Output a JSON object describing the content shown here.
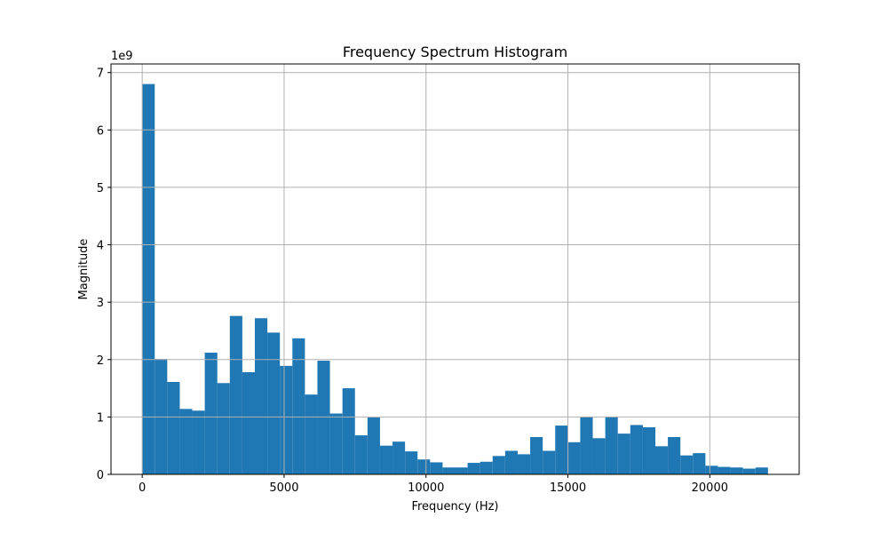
{
  "chart_data": {
    "type": "bar",
    "title": "Frequency Spectrum Histogram",
    "xlabel": "Frequency (Hz)",
    "ylabel": "Magnitude",
    "y_multiplier_label": "1e9",
    "xlim": [
      -1100,
      23150
    ],
    "ylim": [
      0,
      7.15
    ],
    "x_ticks": [
      0,
      5000,
      10000,
      15000,
      20000
    ],
    "y_ticks": [
      0,
      1,
      2,
      3,
      4,
      5,
      6,
      7
    ],
    "grid": true,
    "color": "#1f77b4",
    "bin_start": 0,
    "bin_width": 441,
    "values": [
      6.8,
      2.01,
      1.61,
      1.14,
      1.11,
      2.12,
      1.59,
      2.76,
      1.78,
      2.72,
      2.47,
      1.89,
      2.37,
      1.39,
      1.98,
      1.06,
      1.5,
      0.68,
      0.99,
      0.5,
      0.57,
      0.4,
      0.26,
      0.21,
      0.12,
      0.12,
      0.2,
      0.22,
      0.32,
      0.41,
      0.35,
      0.65,
      0.41,
      0.85,
      0.56,
      1.0,
      0.63,
      1.0,
      0.71,
      0.86,
      0.82,
      0.49,
      0.65,
      0.33,
      0.37,
      0.15,
      0.13,
      0.12,
      0.1,
      0.12
    ]
  }
}
